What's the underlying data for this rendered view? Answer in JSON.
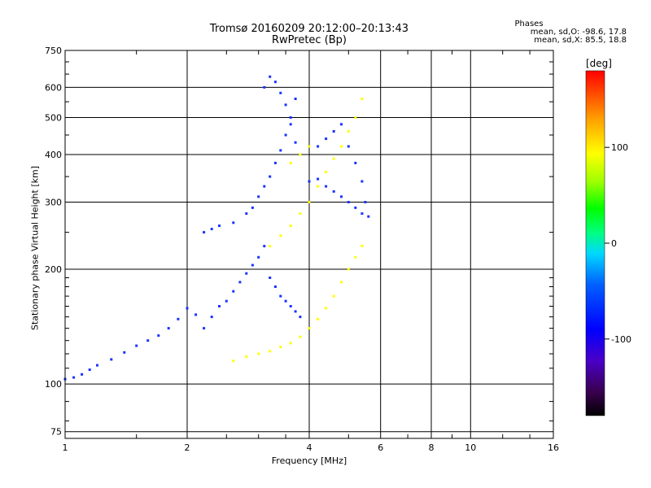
{
  "header": {
    "title_line1": "Tromsø 20160209 20:12:00–20:13:43",
    "title_line2": "RwPretec (Bp)"
  },
  "phases_box": {
    "title": "Phases",
    "line_o": "mean, sd,O:  -98.6, 17.8",
    "line_x": "mean, sd,X:  85.5, 18.8"
  },
  "colorbar": {
    "unit_label": "[deg]",
    "range": [
      -180,
      180
    ],
    "tick_labels": [
      "100",
      "0",
      "-100"
    ],
    "tick_values": [
      100,
      0,
      -100
    ]
  },
  "chart_data": {
    "type": "scatter",
    "title": "Tromsø 20160209 20:12:00–20:13:43",
    "subtitle": "RwPretec (Bp)",
    "xlabel": "Frequency [MHz]",
    "ylabel": "Stationary phase Virtual Height [km]",
    "xscale": "log",
    "yscale": "log",
    "xlim": [
      1,
      16
    ],
    "ylim": [
      72,
      750
    ],
    "grid": true,
    "x_ticks": [
      1,
      2,
      4,
      6,
      8,
      10,
      16
    ],
    "x_tick_labels": [
      "1",
      "2",
      "4",
      "6",
      "8",
      "10",
      "16"
    ],
    "y_ticks": [
      75,
      100,
      200,
      300,
      400,
      500,
      600,
      750
    ],
    "y_tick_labels": [
      "75",
      "100",
      "200",
      "300",
      "400",
      "500",
      "600",
      "750"
    ],
    "color_encoding": "phase [deg]",
    "series": [
      {
        "polarization": "O",
        "color": "#1a33ff",
        "phase_mean": -98.6,
        "phase_sd": 17.8,
        "x": [
          1.0,
          1.05,
          1.1,
          1.15,
          1.2,
          1.3,
          1.4,
          1.5,
          1.6,
          1.7,
          1.8,
          1.9,
          2.0,
          2.1,
          2.2,
          2.3,
          2.4,
          2.5,
          2.6,
          2.7,
          2.8,
          2.9,
          3.0,
          3.1,
          3.2,
          3.3,
          3.4,
          3.5,
          3.6,
          3.7,
          3.8,
          4.0,
          4.2,
          4.4,
          4.6,
          4.8,
          5.0,
          5.2,
          5.4,
          5.6,
          2.2,
          2.3,
          2.4,
          2.6,
          2.8,
          2.9,
          3.0,
          3.1,
          3.2,
          3.3,
          3.4,
          3.5,
          3.6,
          3.7,
          3.1,
          3.2,
          3.3,
          3.4,
          3.5,
          3.6,
          3.7,
          4.2,
          4.4,
          4.6,
          4.8,
          5.0,
          5.2,
          5.4,
          5.5
        ],
        "y": [
          103,
          104,
          106,
          109,
          112,
          116,
          121,
          126,
          130,
          134,
          140,
          148,
          158,
          152,
          140,
          150,
          160,
          165,
          175,
          185,
          195,
          205,
          215,
          230,
          190,
          180,
          170,
          165,
          160,
          155,
          150,
          340,
          345,
          330,
          320,
          310,
          300,
          290,
          280,
          275,
          250,
          255,
          260,
          265,
          280,
          290,
          310,
          330,
          350,
          380,
          410,
          450,
          500,
          560,
          600,
          640,
          620,
          580,
          540,
          480,
          430,
          420,
          440,
          460,
          480,
          420,
          380,
          340,
          300
        ]
      },
      {
        "polarization": "X",
        "color": "#ffff00",
        "phase_mean": 85.5,
        "phase_sd": 18.8,
        "x": [
          2.6,
          2.8,
          3.0,
          3.2,
          3.4,
          3.6,
          3.8,
          4.0,
          4.2,
          4.4,
          4.6,
          4.8,
          5.0,
          5.2,
          5.4,
          3.2,
          3.4,
          3.6,
          3.8,
          4.0,
          4.2,
          4.4,
          4.6,
          4.8,
          5.0,
          5.2,
          5.4,
          3.6,
          3.8,
          4.0
        ],
        "y": [
          115,
          118,
          120,
          122,
          125,
          128,
          133,
          140,
          148,
          158,
          170,
          185,
          200,
          215,
          230,
          230,
          245,
          260,
          280,
          300,
          330,
          360,
          390,
          420,
          460,
          500,
          560,
          380,
          400,
          420
        ]
      }
    ]
  }
}
